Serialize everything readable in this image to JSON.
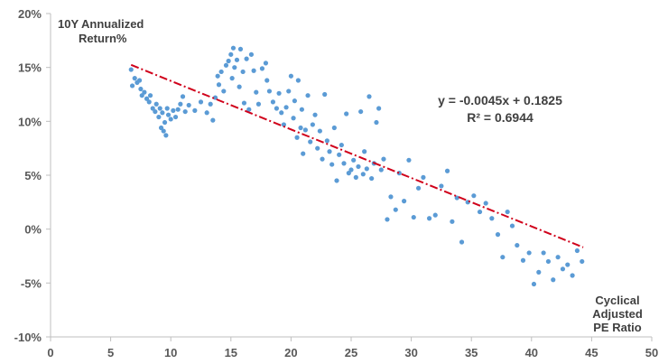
{
  "chart_data": {
    "type": "scatter",
    "title": "",
    "ylabel_lines": [
      "10Y Annualized",
      "Return%"
    ],
    "xlabel_lines": [
      "Cyclical",
      "Adjusted",
      "PE Ratio"
    ],
    "xlim": [
      0,
      50
    ],
    "ylim": [
      -0.1,
      0.2
    ],
    "xticks": [
      0,
      5,
      10,
      15,
      20,
      25,
      30,
      35,
      40,
      45,
      50
    ],
    "xtick_labels": [
      "0",
      "5",
      "10",
      "15",
      "20",
      "25",
      "30",
      "35",
      "40",
      "45",
      "50"
    ],
    "yticks": [
      -0.1,
      -0.05,
      0.0,
      0.05,
      0.1,
      0.15,
      0.2
    ],
    "ytick_labels": [
      "-10%",
      "-5%",
      "0%",
      "5%",
      "10%",
      "15%",
      "20%"
    ],
    "grid": false,
    "colors": {
      "points": "#5b9bd5",
      "trend": "#d0021b",
      "axis": "#bfbfbf",
      "text": "#404040"
    },
    "trendline": {
      "slope": -0.0045,
      "intercept": 0.1825,
      "x_range": [
        6.7,
        44.3
      ],
      "equation": "y = -0.0045x + 0.1825",
      "r_squared": "R² = 0.6944"
    },
    "series": [
      {
        "name": "Observations",
        "points": [
          [
            6.7,
            0.148
          ],
          [
            6.8,
            0.133
          ],
          [
            7.0,
            0.14
          ],
          [
            7.2,
            0.136
          ],
          [
            7.4,
            0.138
          ],
          [
            7.5,
            0.13
          ],
          [
            7.6,
            0.124
          ],
          [
            7.8,
            0.127
          ],
          [
            8.0,
            0.121
          ],
          [
            8.2,
            0.118
          ],
          [
            8.3,
            0.124
          ],
          [
            8.5,
            0.112
          ],
          [
            8.7,
            0.109
          ],
          [
            8.8,
            0.116
          ],
          [
            9.0,
            0.104
          ],
          [
            9.1,
            0.112
          ],
          [
            9.2,
            0.094
          ],
          [
            9.3,
            0.108
          ],
          [
            9.4,
            0.091
          ],
          [
            9.5,
            0.099
          ],
          [
            9.6,
            0.087
          ],
          [
            9.7,
            0.112
          ],
          [
            9.8,
            0.106
          ],
          [
            10.0,
            0.102
          ],
          [
            10.2,
            0.11
          ],
          [
            10.4,
            0.104
          ],
          [
            10.6,
            0.111
          ],
          [
            10.8,
            0.116
          ],
          [
            11.0,
            0.123
          ],
          [
            11.2,
            0.109
          ],
          [
            11.5,
            0.115
          ],
          [
            12.0,
            0.11
          ],
          [
            12.5,
            0.118
          ],
          [
            13.0,
            0.108
          ],
          [
            13.3,
            0.116
          ],
          [
            13.5,
            0.101
          ],
          [
            13.7,
            0.122
          ],
          [
            13.9,
            0.142
          ],
          [
            14.0,
            0.134
          ],
          [
            14.2,
            0.146
          ],
          [
            14.4,
            0.128
          ],
          [
            14.6,
            0.152
          ],
          [
            14.8,
            0.156
          ],
          [
            15.0,
            0.162
          ],
          [
            15.1,
            0.14
          ],
          [
            15.2,
            0.168
          ],
          [
            15.3,
            0.15
          ],
          [
            15.5,
            0.157
          ],
          [
            15.7,
            0.132
          ],
          [
            15.8,
            0.167
          ],
          [
            16.0,
            0.146
          ],
          [
            16.1,
            0.117
          ],
          [
            16.3,
            0.158
          ],
          [
            16.5,
            0.111
          ],
          [
            16.7,
            0.162
          ],
          [
            16.9,
            0.147
          ],
          [
            17.1,
            0.127
          ],
          [
            17.3,
            0.116
          ],
          [
            17.6,
            0.149
          ],
          [
            17.9,
            0.154
          ],
          [
            18.0,
            0.138
          ],
          [
            18.2,
            0.128
          ],
          [
            18.5,
            0.118
          ],
          [
            18.8,
            0.112
          ],
          [
            19.0,
            0.126
          ],
          [
            19.2,
            0.108
          ],
          [
            19.4,
            0.097
          ],
          [
            19.6,
            0.113
          ],
          [
            19.8,
            0.128
          ],
          [
            20.0,
            0.142
          ],
          [
            20.2,
            0.103
          ],
          [
            20.3,
            0.119
          ],
          [
            20.5,
            0.085
          ],
          [
            20.6,
            0.138
          ],
          [
            20.8,
            0.094
          ],
          [
            20.9,
            0.111
          ],
          [
            21.0,
            0.07
          ],
          [
            21.2,
            0.092
          ],
          [
            21.4,
            0.124
          ],
          [
            21.6,
            0.081
          ],
          [
            21.8,
            0.097
          ],
          [
            22.0,
            0.106
          ],
          [
            22.2,
            0.075
          ],
          [
            22.4,
            0.091
          ],
          [
            22.6,
            0.065
          ],
          [
            22.8,
            0.125
          ],
          [
            23.0,
            0.082
          ],
          [
            23.2,
            0.072
          ],
          [
            23.4,
            0.06
          ],
          [
            23.6,
            0.094
          ],
          [
            23.8,
            0.045
          ],
          [
            24.0,
            0.069
          ],
          [
            24.2,
            0.078
          ],
          [
            24.4,
            0.061
          ],
          [
            24.6,
            0.107
          ],
          [
            24.8,
            0.052
          ],
          [
            25.0,
            0.055
          ],
          [
            25.2,
            0.064
          ],
          [
            25.4,
            0.048
          ],
          [
            25.6,
            0.058
          ],
          [
            25.8,
            0.109
          ],
          [
            26.0,
            0.051
          ],
          [
            26.1,
            0.072
          ],
          [
            26.3,
            0.056
          ],
          [
            26.5,
            0.123
          ],
          [
            26.7,
            0.047
          ],
          [
            26.9,
            0.061
          ],
          [
            27.1,
            0.099
          ],
          [
            27.3,
            0.112
          ],
          [
            27.5,
            0.055
          ],
          [
            27.7,
            0.065
          ],
          [
            28.0,
            0.009
          ],
          [
            28.3,
            0.03
          ],
          [
            28.7,
            0.018
          ],
          [
            29.0,
            0.052
          ],
          [
            29.4,
            0.026
          ],
          [
            29.8,
            0.064
          ],
          [
            30.2,
            0.011
          ],
          [
            30.6,
            0.038
          ],
          [
            31.0,
            0.048
          ],
          [
            31.5,
            0.01
          ],
          [
            32.0,
            0.013
          ],
          [
            32.5,
            0.04
          ],
          [
            33.0,
            0.054
          ],
          [
            33.4,
            0.007
          ],
          [
            33.8,
            0.029
          ],
          [
            34.2,
            -0.012
          ],
          [
            34.7,
            0.025
          ],
          [
            35.2,
            0.031
          ],
          [
            35.7,
            0.016
          ],
          [
            36.2,
            0.024
          ],
          [
            36.7,
            0.01
          ],
          [
            37.2,
            -0.005
          ],
          [
            37.6,
            -0.026
          ],
          [
            38.0,
            0.016
          ],
          [
            38.4,
            0.003
          ],
          [
            38.8,
            -0.015
          ],
          [
            39.3,
            -0.029
          ],
          [
            39.8,
            -0.022
          ],
          [
            40.2,
            -0.051
          ],
          [
            40.6,
            -0.04
          ],
          [
            41.0,
            -0.022
          ],
          [
            41.4,
            -0.03
          ],
          [
            41.8,
            -0.047
          ],
          [
            42.2,
            -0.026
          ],
          [
            42.6,
            -0.037
          ],
          [
            43.0,
            -0.033
          ],
          [
            43.4,
            -0.043
          ],
          [
            43.8,
            -0.02
          ],
          [
            44.2,
            -0.03
          ]
        ]
      }
    ]
  }
}
